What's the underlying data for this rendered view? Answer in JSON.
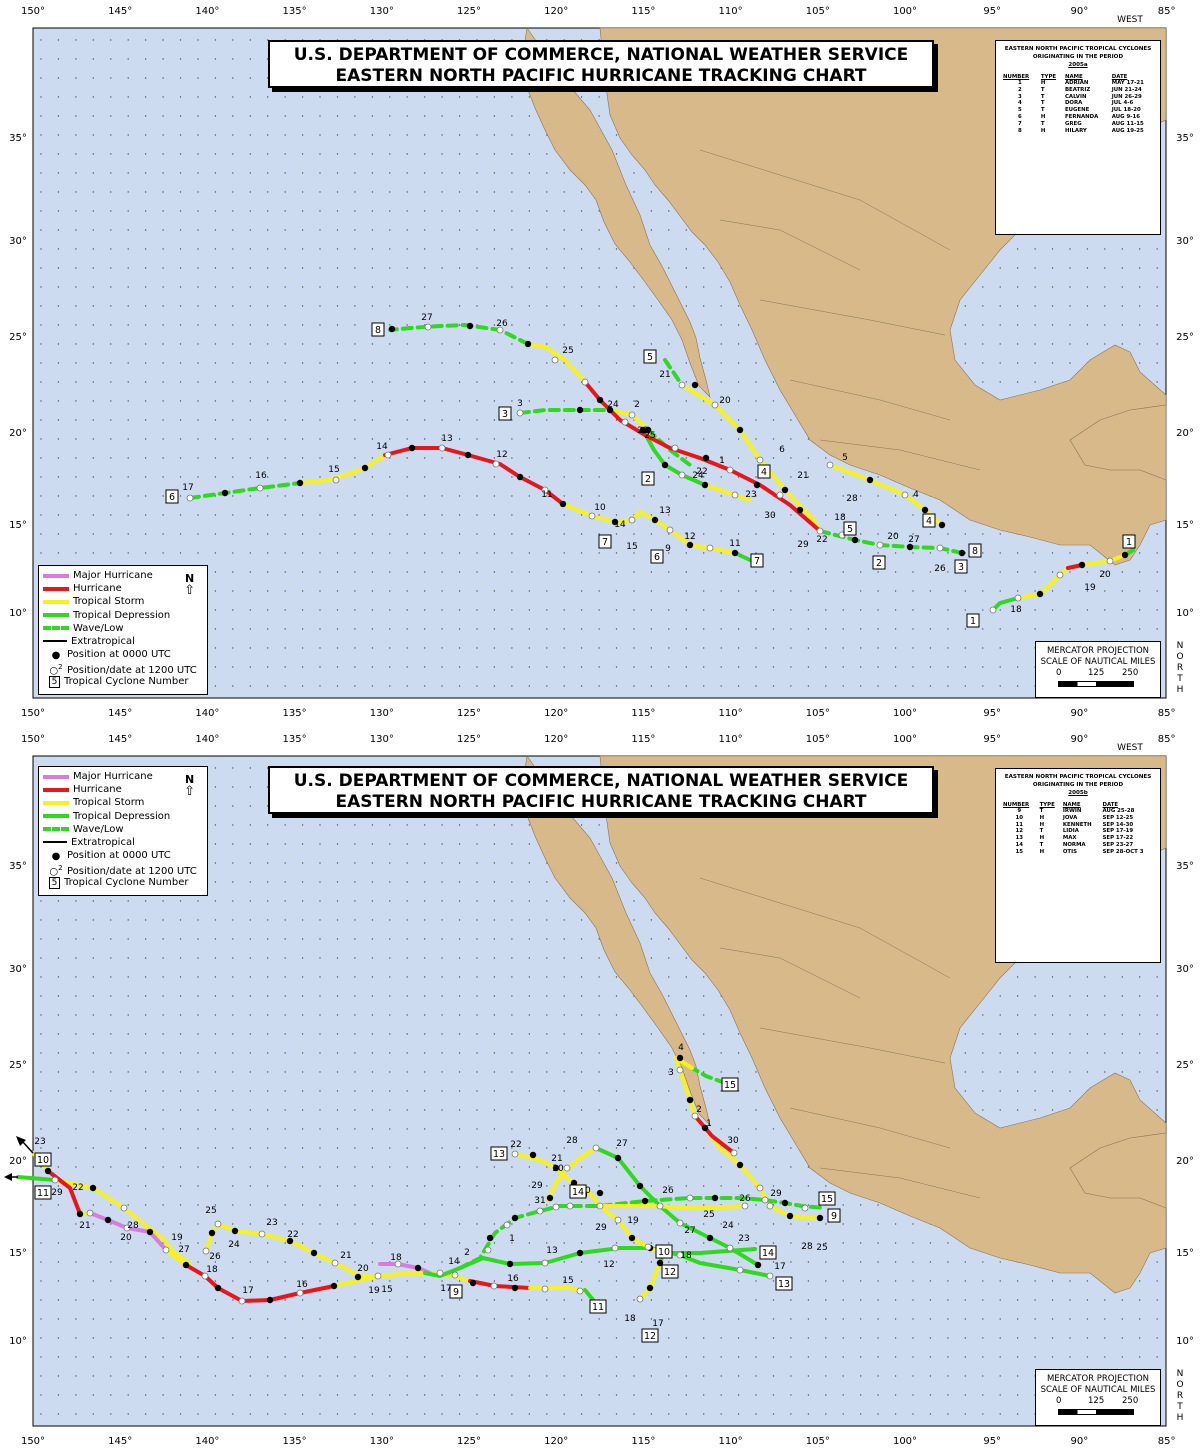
{
  "axis": {
    "lon_labels": [
      "150°",
      "145°",
      "140°",
      "135°",
      "130°",
      "125°",
      "120°",
      "115°",
      "110°",
      "105°",
      "100°",
      "95°",
      "90°",
      "85°"
    ],
    "west_label": "WEST",
    "north_label": "NORTH",
    "lat_labels_top": [
      "35°",
      "30°",
      "25°",
      "20°",
      "15°",
      "10°"
    ],
    "lat_labels_bottom": [
      "35°",
      "30°",
      "25°",
      "20°",
      "15°",
      "10°"
    ]
  },
  "title": {
    "line1": "U.S. DEPARTMENT OF COMMERCE, NATIONAL WEATHER SERVICE",
    "line2": "EASTERN NORTH PACIFIC HURRICANE TRACKING CHART"
  },
  "legend": {
    "items": [
      {
        "label": "Major Hurricane",
        "color": "#d67ddf",
        "style": "solid"
      },
      {
        "label": "Hurricane",
        "color": "#e8151b",
        "style": "solid"
      },
      {
        "label": "Tropical Storm",
        "color": "#f7f21e",
        "style": "solid"
      },
      {
        "label": "Tropical Depression",
        "color": "#2fd91f",
        "style": "solid"
      },
      {
        "label": "Wave/Low",
        "color": "#2fd91f",
        "style": "dash"
      },
      {
        "label": "Extratropical",
        "color": "#000000",
        "style": "cross"
      }
    ],
    "pos0000": "Position at 0000 UTC",
    "pos1200": "Position/date at 1200 UTC",
    "number": "Tropical Cyclone Number",
    "north": "N",
    "sample_num": "5",
    "sample_date": "2"
  },
  "scale": {
    "line1": "MERCATOR PROJECTION",
    "line2": "SCALE OF NAUTICAL MILES",
    "ticks": [
      "0",
      "125",
      "250"
    ]
  },
  "info_top": {
    "header1": "EASTERN NORTH PACIFIC TROPICAL CYCLONES",
    "header2": "ORIGINATING IN THE PERIOD",
    "period": "2005a",
    "columns": [
      "NUMBER",
      "TYPE",
      "NAME",
      "DATE"
    ],
    "rows": [
      [
        "1",
        "H",
        "ADRIAN",
        "MAY 17-21"
      ],
      [
        "2",
        "T",
        "BEATRIZ",
        "JUN 21-24"
      ],
      [
        "3",
        "T",
        "CALVIN",
        "JUN 26-29"
      ],
      [
        "4",
        "T",
        "DORA",
        "JUL 4-6"
      ],
      [
        "5",
        "T",
        "EUGENE",
        "JUL 18-20"
      ],
      [
        "6",
        "H",
        "FERNANDA",
        "AUG 9-16"
      ],
      [
        "7",
        "T",
        "GREG",
        "AUG 11-15"
      ],
      [
        "8",
        "H",
        "HILARY",
        "AUG 19-25"
      ]
    ]
  },
  "info_bottom": {
    "header1": "EASTERN NORTH PACIFIC TROPICAL CYCLONES",
    "header2": "ORIGINATING IN THE PERIOD",
    "period": "2005b",
    "columns": [
      "NUMBER",
      "TYPE",
      "NAME",
      "DATE"
    ],
    "rows": [
      [
        "9",
        "T",
        "IRWIN",
        "AUG 25-28"
      ],
      [
        "10",
        "H",
        "JOVA",
        "SEP 12-25"
      ],
      [
        "11",
        "H",
        "KENNETH",
        "SEP 14-30"
      ],
      [
        "12",
        "T",
        "LIDIA",
        "SEP 17-19"
      ],
      [
        "13",
        "H",
        "MAX",
        "SEP 17-22"
      ],
      [
        "14",
        "T",
        "NORMA",
        "SEP 23-27"
      ],
      [
        "15",
        "H",
        "OTIS",
        "SEP 28-OCT 3"
      ]
    ]
  },
  "colors": {
    "ocean": "#ccdbf0",
    "land": "#d7b98a",
    "major": "#d67ddf",
    "hurricane": "#e8151b",
    "storm": "#f7f21e",
    "depression": "#2fd91f"
  },
  "storm_labels_top": [
    "1",
    "2",
    "3",
    "4",
    "5",
    "6",
    "7",
    "8"
  ],
  "storm_labels_bottom": [
    "9",
    "10",
    "11",
    "12",
    "13",
    "14",
    "15"
  ]
}
